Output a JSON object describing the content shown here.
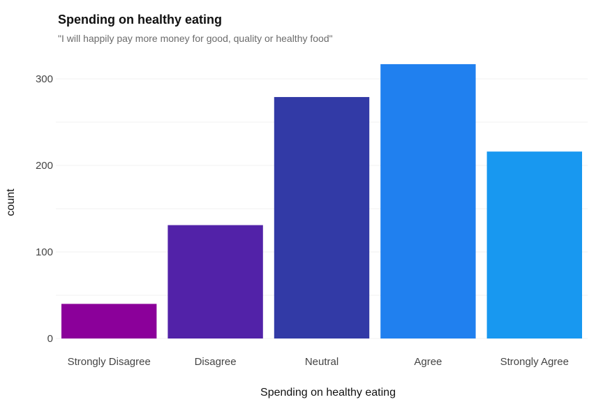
{
  "chart_data": {
    "type": "bar",
    "title": "Spending on healthy eating",
    "subtitle": "\"I will happily pay more money for good, quality or healthy food\"",
    "xlabel": "Spending on healthy eating",
    "ylabel": "count",
    "categories": [
      "Strongly Disagree",
      "Disagree",
      "Neutral",
      "Agree",
      "Strongly Agree"
    ],
    "values": [
      40,
      131,
      279,
      317,
      216
    ],
    "colors": [
      "#8b009a",
      "#5222a8",
      "#323aa6",
      "#2080ef",
      "#1898f0"
    ],
    "ylim": [
      0,
      320
    ],
    "yticks": [
      0,
      100,
      200,
      300
    ],
    "grid": true,
    "legend": "none"
  }
}
